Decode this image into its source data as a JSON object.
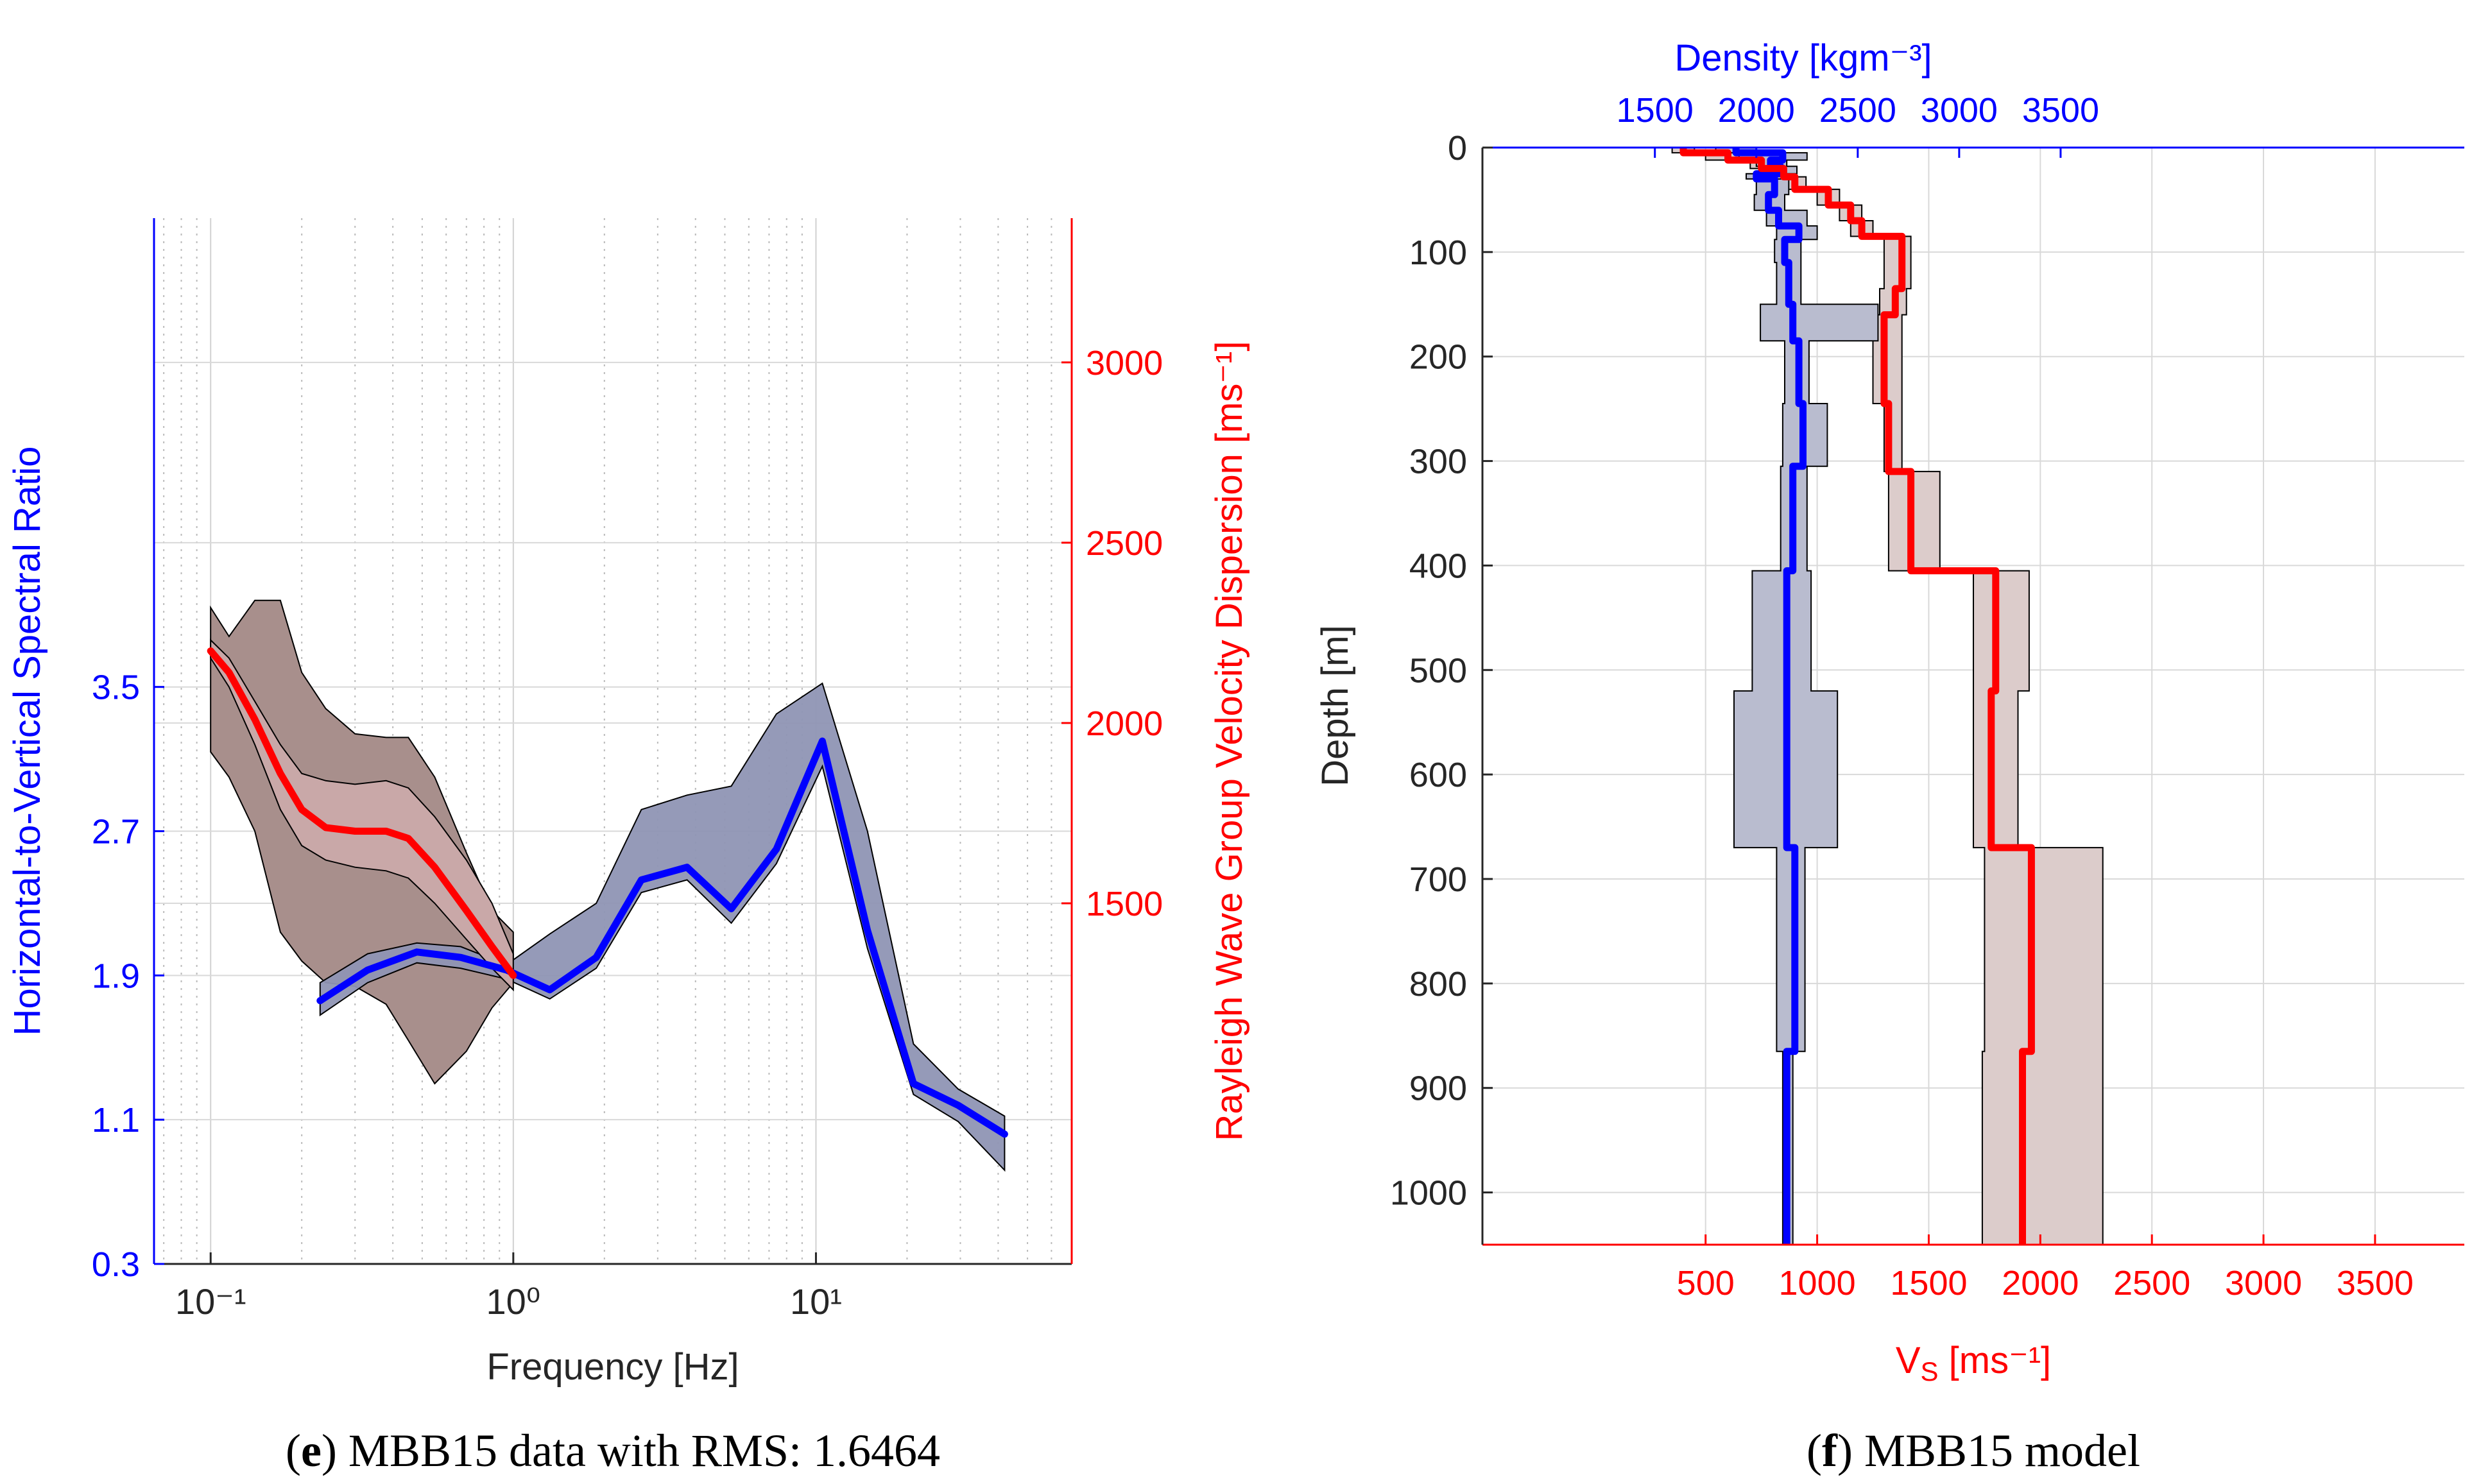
{
  "colors": {
    "hv": "#0000ff",
    "dispersion": "#ff0000",
    "hv_band": "#8f95b4",
    "disp_band": "#a88f8c",
    "disp_inner_band": "#c9a8a8",
    "vs_band": "#dccccb",
    "dens_band": "#b9bccf",
    "grid": "#d9d9d9",
    "axis": "#000000"
  },
  "panel_e": {
    "caption_bold": "e",
    "caption_text": "MBB15 data with RMS: 1.6464"
  },
  "panel_f": {
    "caption_bold": "f",
    "caption_text": "MBB15 model"
  },
  "chart_data": [
    {
      "type": "line",
      "panel": "e",
      "title": "",
      "xlabel": "Frequency [Hz]",
      "ylabel_left": "Horizontal-to-Vertical Spectral Ratio",
      "ylabel_right": "Rayleigh Wave Group Velocity Dispersion [ms⁻¹]",
      "x_scale": "log",
      "xlim": [
        0.065,
        70
      ],
      "x_ticks": [
        0.1,
        1,
        10
      ],
      "x_tick_labels": [
        "10⁻¹",
        "10⁰",
        "10¹"
      ],
      "ylim_left": [
        0.3,
        6.1
      ],
      "y_ticks_left": [
        0.3,
        1.1,
        1.9,
        2.7,
        3.5
      ],
      "ylim_right": [
        500,
        3400
      ],
      "y_ticks_right": [
        1500,
        2000,
        2500,
        3000
      ],
      "grid": true,
      "series": [
        {
          "name": "H/V spectral ratio",
          "axis": "left",
          "color": "blue",
          "x": [
            0.23,
            0.33,
            0.48,
            0.67,
            0.95,
            1.32,
            1.88,
            2.65,
            3.75,
            5.25,
            7.4,
            10.5,
            14.8,
            21,
            29.5,
            42
          ],
          "y": [
            1.76,
            1.93,
            2.03,
            2.0,
            1.93,
            1.82,
            2.0,
            2.43,
            2.5,
            2.27,
            2.6,
            3.2,
            2.15,
            1.3,
            1.18,
            1.02
          ],
          "lower": [
            1.68,
            1.86,
            1.97,
            1.94,
            1.88,
            1.77,
            1.94,
            2.36,
            2.43,
            2.19,
            2.52,
            3.06,
            2.05,
            1.24,
            1.09,
            0.82
          ],
          "upper": [
            1.86,
            2.02,
            2.08,
            2.06,
            1.96,
            2.13,
            2.3,
            2.82,
            2.9,
            2.95,
            3.35,
            3.52,
            2.7,
            1.52,
            1.27,
            1.12
          ]
        },
        {
          "name": "Rayleigh wave group velocity dispersion",
          "axis": "right",
          "color": "red",
          "x": [
            0.1,
            0.115,
            0.14,
            0.17,
            0.2,
            0.24,
            0.3,
            0.38,
            0.45,
            0.55,
            0.7,
            0.85,
            1.0
          ],
          "y": [
            2200,
            2140,
            2010,
            1860,
            1760,
            1710,
            1700,
            1700,
            1680,
            1600,
            1480,
            1380,
            1300
          ],
          "inner_lower": [
            2180,
            2100,
            1940,
            1760,
            1660,
            1620,
            1600,
            1590,
            1570,
            1500,
            1400,
            1320,
            1260
          ],
          "inner_upper": [
            2230,
            2180,
            2060,
            1940,
            1860,
            1840,
            1830,
            1840,
            1820,
            1740,
            1620,
            1500,
            1360
          ],
          "outer_lower": [
            1920,
            1850,
            1700,
            1420,
            1340,
            1280,
            1270,
            1220,
            1120,
            1000,
            1090,
            1210,
            1280
          ],
          "outer_upper": [
            2320,
            2240,
            2340,
            2340,
            2140,
            2040,
            1970,
            1960,
            1960,
            1850,
            1640,
            1480,
            1420
          ]
        }
      ]
    },
    {
      "type": "line",
      "panel": "f",
      "title": "",
      "ylabel": "Depth [m]",
      "xlabel_bottom": "V",
      "xlabel_bottom_sub": "S",
      "xlabel_bottom_unit": "[ms⁻¹]",
      "xlabel_top": "Density [kgm⁻³]",
      "ylim": [
        0,
        1050
      ],
      "y_ticks": [
        0,
        100,
        200,
        300,
        400,
        500,
        600,
        700,
        800,
        900,
        1000
      ],
      "xlim_vs": [
        -500,
        3900
      ],
      "vs_ticks": [
        500,
        1000,
        1500,
        2000,
        2500,
        3000,
        3500
      ],
      "xlim_density": [
        650,
        5490
      ],
      "density_ticks": [
        1500,
        2000,
        2500,
        3000,
        3500
      ],
      "grid": true,
      "series": [
        {
          "name": "Density model",
          "axis": "top",
          "color": "blue",
          "depth": [
            0,
            5,
            5,
            12,
            12,
            18,
            18,
            25,
            25,
            30,
            30,
            45,
            45,
            60,
            60,
            75,
            75,
            88,
            88,
            110,
            110,
            150,
            150,
            185,
            185,
            245,
            245,
            305,
            305,
            405,
            405,
            520,
            520,
            670,
            670,
            865,
            865,
            1050
          ],
          "value": [
            1900,
            1900,
            2130,
            2130,
            2070,
            2070,
            2120,
            2120,
            2000,
            2000,
            2090,
            2090,
            2060,
            2060,
            2110,
            2110,
            2210,
            2210,
            2140,
            2140,
            2160,
            2160,
            2180,
            2180,
            2210,
            2210,
            2230,
            2230,
            2180,
            2180,
            2150,
            2150,
            2150,
            2150,
            2190,
            2190,
            2150,
            2150
          ],
          "lower": [
            1800,
            1800,
            2000,
            2000,
            2000,
            2000,
            2020,
            2020,
            1950,
            1950,
            2000,
            2000,
            1990,
            1990,
            2050,
            2050,
            2100,
            2100,
            2090,
            2090,
            2100,
            2100,
            2020,
            2020,
            2140,
            2140,
            2130,
            2130,
            2120,
            2120,
            1980,
            1980,
            1890,
            1890,
            2100,
            2100,
            2130,
            2130
          ],
          "upper": [
            2000,
            2000,
            2250,
            2250,
            2150,
            2150,
            2200,
            2200,
            2050,
            2050,
            2160,
            2160,
            2140,
            2140,
            2250,
            2250,
            2300,
            2300,
            2220,
            2220,
            2220,
            2220,
            2600,
            2600,
            2260,
            2260,
            2350,
            2350,
            2250,
            2250,
            2270,
            2270,
            2400,
            2400,
            2240,
            2240,
            2180,
            2180
          ]
        },
        {
          "name": "Vs model",
          "axis": "bottom",
          "color": "red",
          "depth": [
            0,
            5,
            5,
            12,
            12,
            20,
            20,
            28,
            28,
            40,
            40,
            55,
            55,
            70,
            70,
            85,
            85,
            135,
            135,
            160,
            160,
            245,
            245,
            310,
            310,
            405,
            405,
            520,
            520,
            670,
            670,
            865,
            865,
            1050
          ],
          "value": [
            400,
            400,
            600,
            600,
            750,
            750,
            850,
            850,
            900,
            900,
            1050,
            1050,
            1150,
            1150,
            1200,
            1200,
            1380,
            1380,
            1350,
            1350,
            1300,
            1300,
            1320,
            1320,
            1420,
            1420,
            1800,
            1800,
            1780,
            1780,
            1960,
            1960,
            1920,
            1920
          ],
          "lower": [
            350,
            350,
            500,
            500,
            700,
            700,
            780,
            780,
            850,
            850,
            1000,
            1000,
            1100,
            1100,
            1150,
            1150,
            1300,
            1300,
            1280,
            1280,
            1250,
            1250,
            1300,
            1300,
            1320,
            1320,
            1700,
            1700,
            1700,
            1700,
            1750,
            1750,
            1740,
            1740
          ],
          "upper": [
            450,
            450,
            650,
            650,
            800,
            800,
            900,
            900,
            950,
            950,
            1100,
            1100,
            1200,
            1200,
            1250,
            1250,
            1420,
            1420,
            1400,
            1400,
            1380,
            1380,
            1380,
            1380,
            1550,
            1550,
            1950,
            1950,
            1900,
            1900,
            2280,
            2280,
            2280,
            2280
          ]
        }
      ]
    }
  ]
}
